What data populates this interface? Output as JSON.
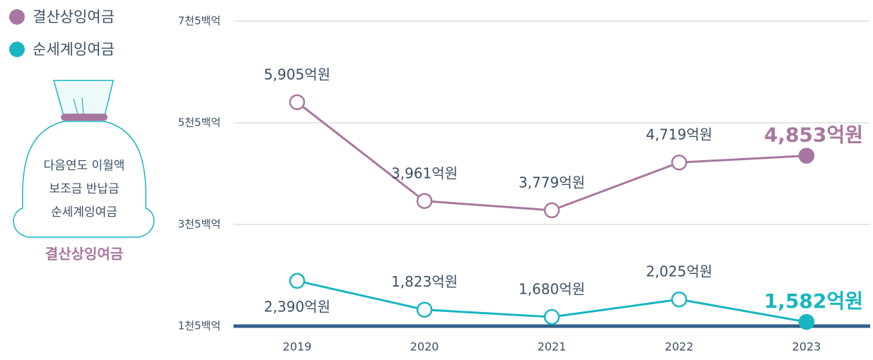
{
  "chart_data": {
    "type": "line",
    "categories": [
      "2019",
      "2020",
      "2021",
      "2022",
      "2023"
    ],
    "series": [
      {
        "name": "결산상잉여금",
        "color": "#a8779f",
        "values": [
          5905,
          3961,
          3779,
          4719,
          4853
        ],
        "value_labels": [
          "5,905억원",
          "3,961억원",
          "3,779억원",
          "4,719억원",
          "4,853억원"
        ]
      },
      {
        "name": "순세계잉여금",
        "color": "#19b5c1",
        "values": [
          2390,
          1823,
          1680,
          2025,
          1582
        ],
        "value_labels": [
          "2,390억원",
          "1,823억원",
          "1,680억원",
          "2,025억원",
          "1,582억원"
        ]
      }
    ],
    "ylim": [
      1500,
      7500
    ],
    "yticks": [
      {
        "value": 1500,
        "label": "1천5백억"
      },
      {
        "value": 3500,
        "label": "3천5백억"
      },
      {
        "value": 5500,
        "label": "5천5백억"
      },
      {
        "value": 7500,
        "label": "7천5백억"
      }
    ],
    "grid": true,
    "legend": "top-left",
    "annotations": [
      "다음연도 이월액",
      "보조금 반납금",
      "순세계잉여금",
      "결산상잉여금"
    ]
  }
}
